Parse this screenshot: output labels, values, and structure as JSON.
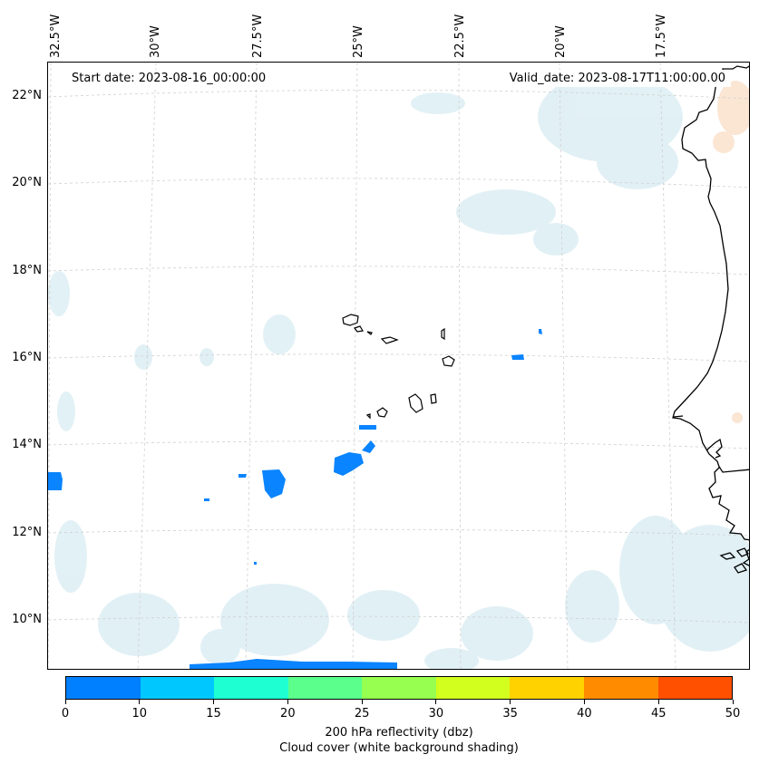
{
  "map": {
    "start_label": "Start date: 2023-08-16_00:00:00",
    "valid_label": "Valid_date: 2023-08-17T11:00:00.00",
    "lon_labels": [
      "32.5°W",
      "30°W",
      "27.5°W",
      "25°W",
      "22.5°W",
      "20°W",
      "17.5°W"
    ],
    "lat_labels": [
      "22°N",
      "20°N",
      "18°N",
      "16°N",
      "14°N",
      "12°N",
      "10°N"
    ]
  },
  "colorbar": {
    "colors": [
      "#0080ff",
      "#00c8ff",
      "#1effd2",
      "#5aff8c",
      "#96ff50",
      "#d2ff1e",
      "#ffd200",
      "#ff8c00",
      "#ff5000"
    ],
    "ticks": [
      "0",
      "10",
      "15",
      "20",
      "25",
      "30",
      "35",
      "40",
      "45",
      "50"
    ],
    "title": "200 hPa reflectivity (dbz)",
    "subtitle": "Cloud cover (white background shading)"
  },
  "palette": {
    "cloud": "#d8ecf2",
    "reflectivity": "#0a84ff",
    "coast": "#000000",
    "grid": "#d0d0d0",
    "warm": "#fbe3cf"
  }
}
